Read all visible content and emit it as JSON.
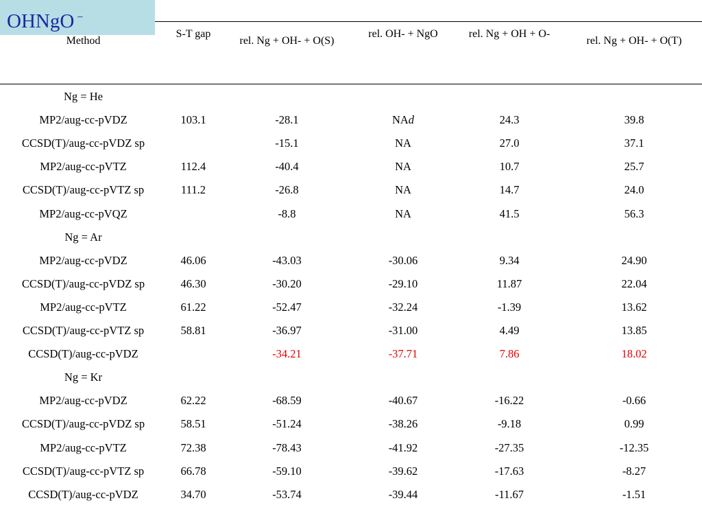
{
  "title": {
    "text": "OHNgO",
    "superscript": "−"
  },
  "headers": [
    "Method",
    "S-T gap",
    "rel. Ng + OH- + O(S)",
    "rel. OH- + NgO",
    "rel. Ng + OH + O-",
    "rel. Ng + OH- + O(T)"
  ],
  "colors": {
    "title_bg": "#b7dde5",
    "title_text": "#1a2a9e",
    "highlight": "#e00000"
  },
  "rows": [
    {
      "type": "group",
      "label": "Ng = He"
    },
    {
      "type": "data",
      "cells": [
        "MP2/aug-cc-pVDZ",
        "103.1",
        "-28.1",
        "NA",
        "24.3",
        "39.8"
      ],
      "suffix3": "d"
    },
    {
      "type": "data",
      "cells": [
        "CCSD(T)/aug-cc-pVDZ sp",
        "",
        "-15.1",
        "NA",
        "27.0",
        "37.1"
      ]
    },
    {
      "type": "data",
      "cells": [
        "MP2/aug-cc-pVTZ",
        "112.4",
        "-40.4",
        "NA",
        "10.7",
        "25.7"
      ]
    },
    {
      "type": "data",
      "cells": [
        "CCSD(T)/aug-cc-pVTZ sp",
        "111.2",
        "-26.8",
        "NA",
        "14.7",
        "24.0"
      ]
    },
    {
      "type": "data",
      "cells": [
        "MP2/aug-cc-pVQZ",
        "",
        "-8.8",
        "NA",
        "41.5",
        "56.3"
      ]
    },
    {
      "type": "group",
      "label": "Ng = Ar"
    },
    {
      "type": "data",
      "cells": [
        "MP2/aug-cc-pVDZ",
        "46.06",
        "-43.03",
        "-30.06",
        "9.34",
        "24.90"
      ]
    },
    {
      "type": "data",
      "cells": [
        "CCSD(T)/aug-cc-pVDZ sp",
        "46.30",
        "-30.20",
        "-29.10",
        "11.87",
        "22.04"
      ]
    },
    {
      "type": "data",
      "cells": [
        "MP2/aug-cc-pVTZ",
        "61.22",
        "-52.47",
        "-32.24",
        "-1.39",
        "13.62"
      ]
    },
    {
      "type": "data",
      "cells": [
        "CCSD(T)/aug-cc-pVTZ sp",
        "58.81",
        "-36.97",
        "-31.00",
        "4.49",
        "13.85"
      ]
    },
    {
      "type": "data",
      "cells": [
        "CCSD(T)/aug-cc-pVDZ",
        "",
        "-34.21",
        "-37.71",
        "7.86",
        "18.02"
      ],
      "highlight": true
    },
    {
      "type": "group",
      "label": "Ng = Kr"
    },
    {
      "type": "data",
      "cells": [
        "MP2/aug-cc-pVDZ",
        "62.22",
        "-68.59",
        "-40.67",
        "-16.22",
        "-0.66"
      ]
    },
    {
      "type": "data",
      "cells": [
        "CCSD(T)/aug-cc-pVDZ sp",
        "58.51",
        "-51.24",
        "-38.26",
        "-9.18",
        "0.99"
      ]
    },
    {
      "type": "data",
      "cells": [
        "MP2/aug-cc-pVTZ",
        "72.38",
        "-78.43",
        "-41.92",
        "-27.35",
        "-12.35"
      ]
    },
    {
      "type": "data",
      "cells": [
        "CCSD(T)/aug-cc-pVTZ sp",
        "66.78",
        "-59.10",
        "-39.62",
        "-17.63",
        "-8.27"
      ]
    },
    {
      "type": "data",
      "cells": [
        "CCSD(T)/aug-cc-pVDZ",
        "34.70",
        "-53.74",
        "-39.44",
        "-11.67",
        "-1.51"
      ]
    }
  ]
}
